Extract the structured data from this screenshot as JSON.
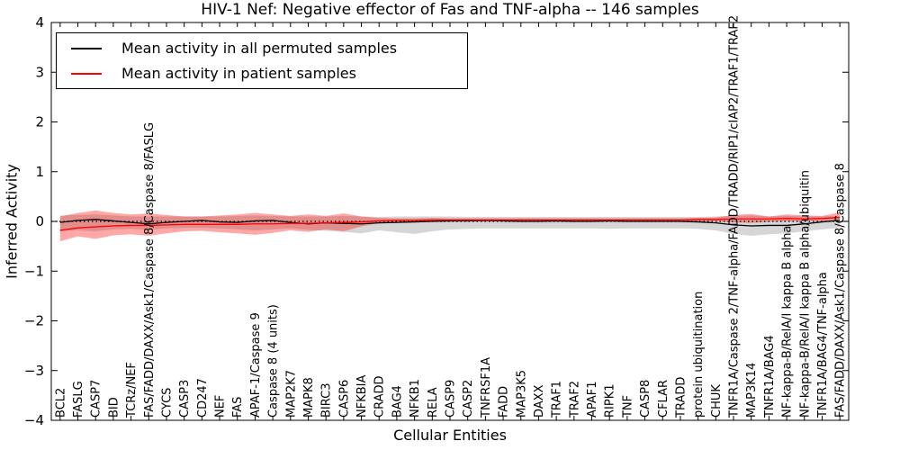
{
  "title": "HIV-1 Nef: Negative effector of Fas and TNF-alpha -- 146 samples",
  "legend": {
    "entries": [
      {
        "label": "Mean activity in all permuted samples",
        "color": "#000000"
      },
      {
        "label": "Mean activity in patient samples",
        "color": "#ff0000"
      }
    ]
  },
  "axes": {
    "xlabel": "Cellular Entities",
    "ylabel": "Inferred Activity"
  },
  "chart_data": {
    "type": "line",
    "title": "HIV-1 Nef: Negative effector of Fas and TNF-alpha -- 146 samples",
    "xlabel": "Cellular Entities",
    "ylabel": "Inferred Activity",
    "ylim": [
      -4,
      4
    ],
    "grid": false,
    "legend_position": "upper left",
    "zero_reference_line": "dotted black line at y=0",
    "yticks": [
      {
        "value": 4,
        "label": "4"
      },
      {
        "value": 3,
        "label": "3"
      },
      {
        "value": 2,
        "label": "2"
      },
      {
        "value": 1,
        "label": "1"
      },
      {
        "value": 0,
        "label": "0"
      },
      {
        "value": -1,
        "label": "−1"
      },
      {
        "value": -2,
        "label": "−2"
      },
      {
        "value": -3,
        "label": "−3"
      },
      {
        "value": -4,
        "label": "−4"
      }
    ],
    "categories": [
      "BCL2",
      "FASLG",
      "CASP7",
      "BID",
      "TCRz/NEF",
      "FAS/FADD/DAXX/Ask1/Caspase 8/Caspase 8/FASLG",
      "CYCS",
      "CASP3",
      "CD247",
      "NEF",
      "FAS",
      "APAF-1/Caspase 9",
      "Caspase 8 (4 units)",
      "MAP2K7",
      "MAPK8",
      "BIRC3",
      "CASP6",
      "NFKBIA",
      "CRADD",
      "BAG4",
      "NFKB1",
      "RELA",
      "CASP9",
      "CASP2",
      "TNFRSF1A",
      "FADD",
      "MAP3K5",
      "DAXX",
      "TRAF1",
      "TRAF2",
      "APAF1",
      "RIPK1",
      "TNF",
      "CASP8",
      "CFLAR",
      "TRADD",
      "protein ubiquitination",
      "CHUK",
      "TNFR1A/Caspase 2/TNF-alpha/FADD/TRADD/RIP1/cIAP2/TRAF1/TRAF2",
      "MAP3K14",
      "TNFR1A/BAG4",
      "NF-kappa-B/RelA/I kappa B alpha",
      "NF-kappa-B/RelA/I kappa B alpha/ubiquitin",
      "TNFR1A/BAG4/TNF-alpha",
      "FAS/FADD/DAXX/Ask1/Caspase 8/Caspase 8"
    ],
    "series": [
      {
        "id": "permuted",
        "name": "Mean activity in all permuted samples",
        "color": "#000000",
        "values": [
          -0.02,
          0.02,
          0.04,
          0.01,
          -0.02,
          -0.05,
          -0.02,
          0.0,
          0.02,
          -0.01,
          -0.02,
          0.01,
          0.02,
          -0.02,
          -0.05,
          -0.03,
          -0.04,
          -0.05,
          -0.03,
          -0.02,
          -0.01,
          0.0,
          0.01,
          0.01,
          0.02,
          0.01,
          0.0,
          0.0,
          0.01,
          0.0,
          0.0,
          0.01,
          0.0,
          0.0,
          0.0,
          0.0,
          -0.01,
          -0.03,
          -0.07,
          -0.09,
          -0.08,
          -0.08,
          -0.05,
          -0.01,
          0.02
        ],
        "band": {
          "fill": "rgba(0,0,0,0.16)",
          "upper": [
            0.12,
            0.13,
            0.14,
            0.12,
            0.1,
            0.1,
            0.1,
            0.1,
            0.1,
            0.1,
            0.11,
            0.12,
            0.11,
            0.1,
            0.1,
            0.1,
            0.11,
            0.1,
            0.09,
            0.1,
            0.1,
            0.1,
            0.1,
            0.09,
            0.09,
            0.09,
            0.09,
            0.09,
            0.09,
            0.09,
            0.09,
            0.09,
            0.09,
            0.09,
            0.09,
            0.09,
            0.09,
            0.1,
            0.11,
            0.12,
            0.1,
            0.11,
            0.1,
            0.1,
            0.12
          ],
          "lower": [
            -0.2,
            -0.18,
            -0.2,
            -0.16,
            -0.15,
            -0.17,
            -0.14,
            -0.13,
            -0.13,
            -0.14,
            -0.16,
            -0.18,
            -0.16,
            -0.14,
            -0.17,
            -0.19,
            -0.21,
            -0.24,
            -0.18,
            -0.22,
            -0.25,
            -0.2,
            -0.16,
            -0.15,
            -0.14,
            -0.14,
            -0.14,
            -0.14,
            -0.14,
            -0.14,
            -0.14,
            -0.15,
            -0.14,
            -0.14,
            -0.14,
            -0.14,
            -0.15,
            -0.18,
            -0.25,
            -0.29,
            -0.26,
            -0.24,
            -0.2,
            -0.16,
            -0.13
          ]
        }
      },
      {
        "id": "patient",
        "name": "Mean activity in patient samples",
        "color": "#ff0000",
        "values": [
          -0.18,
          -0.13,
          -0.11,
          -0.09,
          -0.08,
          -0.08,
          -0.07,
          -0.06,
          -0.06,
          -0.06,
          -0.06,
          -0.05,
          -0.05,
          -0.04,
          -0.04,
          -0.03,
          -0.02,
          -0.01,
          0.01,
          0.02,
          0.02,
          0.03,
          0.03,
          0.03,
          0.03,
          0.03,
          0.03,
          0.03,
          0.03,
          0.03,
          0.03,
          0.03,
          0.03,
          0.03,
          0.03,
          0.03,
          0.04,
          0.04,
          0.05,
          0.05,
          0.05,
          0.06,
          0.05,
          0.06,
          0.08
        ],
        "band": {
          "fill": "rgba(255,0,0,0.34)",
          "upper": [
            0.1,
            0.17,
            0.22,
            0.17,
            0.14,
            0.16,
            0.13,
            0.1,
            0.1,
            0.12,
            0.14,
            0.17,
            0.14,
            0.11,
            0.14,
            0.11,
            0.16,
            0.1,
            0.07,
            0.06,
            0.06,
            0.07,
            0.06,
            0.06,
            0.06,
            0.06,
            0.06,
            0.06,
            0.06,
            0.06,
            0.06,
            0.06,
            0.06,
            0.06,
            0.06,
            0.06,
            0.07,
            0.08,
            0.13,
            0.15,
            0.1,
            0.14,
            0.12,
            0.11,
            0.18
          ],
          "lower": [
            -0.4,
            -0.3,
            -0.35,
            -0.28,
            -0.26,
            -0.29,
            -0.24,
            -0.2,
            -0.19,
            -0.22,
            -0.24,
            -0.27,
            -0.23,
            -0.18,
            -0.21,
            -0.16,
            -0.2,
            -0.1,
            -0.03,
            -0.02,
            -0.01,
            -0.01,
            0.0,
            0.0,
            0.0,
            0.0,
            0.0,
            0.0,
            0.0,
            0.0,
            0.0,
            0.0,
            0.0,
            0.0,
            0.0,
            0.0,
            0.0,
            0.0,
            -0.02,
            -0.03,
            -0.01,
            0.0,
            0.0,
            0.01,
            0.02
          ]
        }
      }
    ]
  }
}
